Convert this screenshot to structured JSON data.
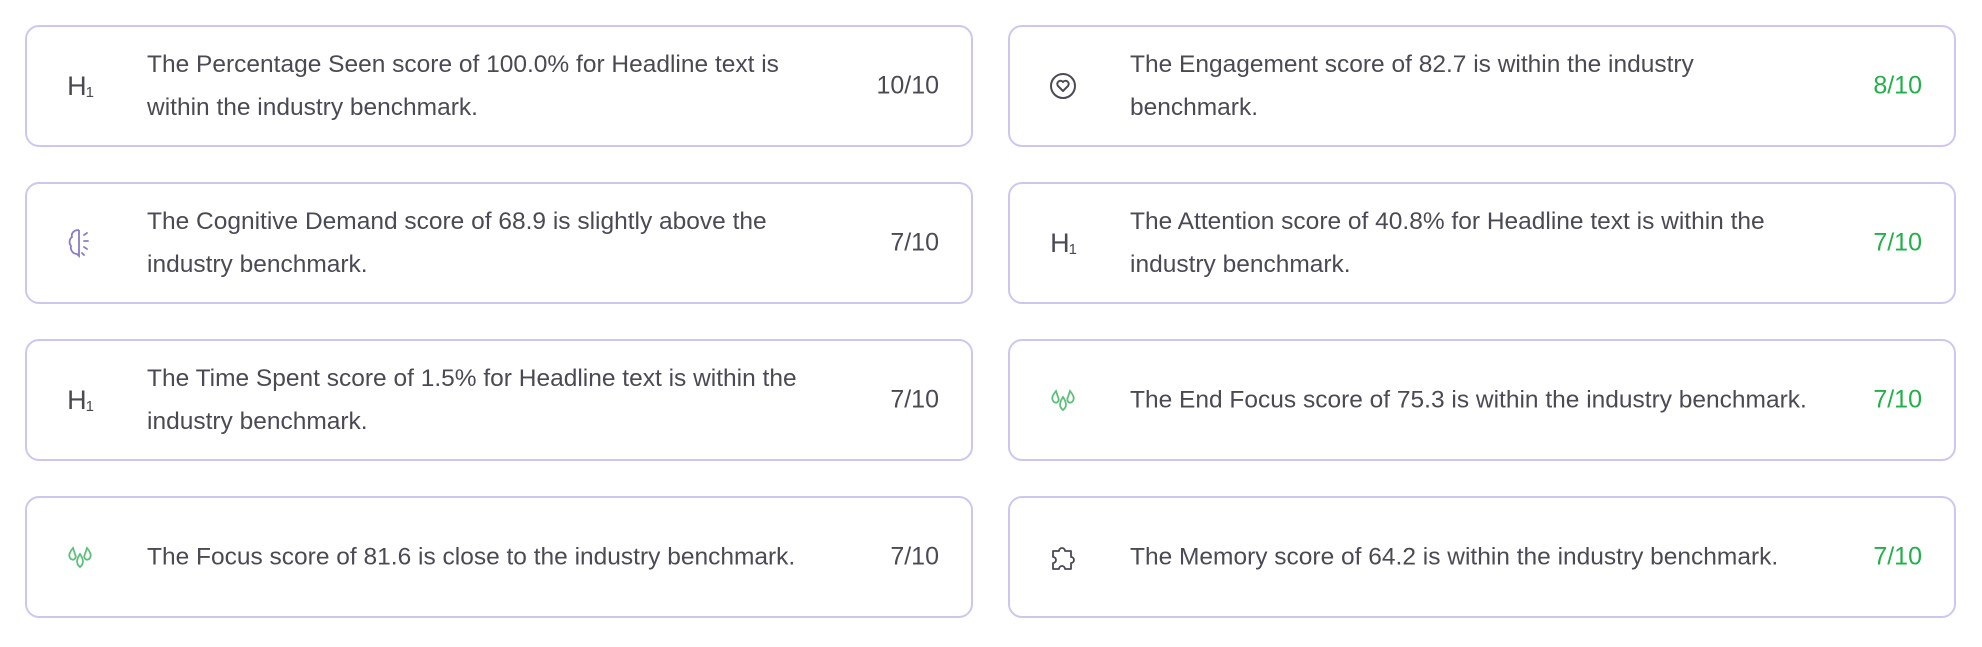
{
  "colors": {
    "border": "#cfc6f0",
    "text": "#4a4a55",
    "score_green": "#22b04a",
    "icon_purple": "#8a7cc8",
    "icon_green": "#5bbf7a"
  },
  "cards": [
    {
      "icon": "heading-h1-icon",
      "text": "The Percentage Seen score of 100.0% for Headline text is within the industry benchmark.",
      "score": "10/10"
    },
    {
      "icon": "heart-circle-icon",
      "text": "The Engagement score of 82.7 is within the industry benchmark.",
      "score": "8/10"
    },
    {
      "icon": "brain-icon",
      "text": "The Cognitive Demand score of 68.9 is slightly above the industry benchmark.",
      "score": "7/10"
    },
    {
      "icon": "heading-h1-icon",
      "text": "The Attention score of 40.8% for Headline text is within the industry benchmark.",
      "score": "7/10"
    },
    {
      "icon": "heading-h1-icon",
      "text": "The Time Spent score of 1.5% for Headline text is within the industry benchmark.",
      "score": "7/10"
    },
    {
      "icon": "focus-drops-icon",
      "text": "The End Focus score of 75.3 is within the industry benchmark.",
      "score": "7/10"
    },
    {
      "icon": "focus-drops-icon",
      "text": "The Focus score of 81.6 is close to the industry benchmark.",
      "score": "7/10"
    },
    {
      "icon": "puzzle-icon",
      "text": "The Memory score of 64.2 is within the industry benchmark.",
      "score": "7/10"
    }
  ],
  "h1_label": "H",
  "h1_sub": "1"
}
